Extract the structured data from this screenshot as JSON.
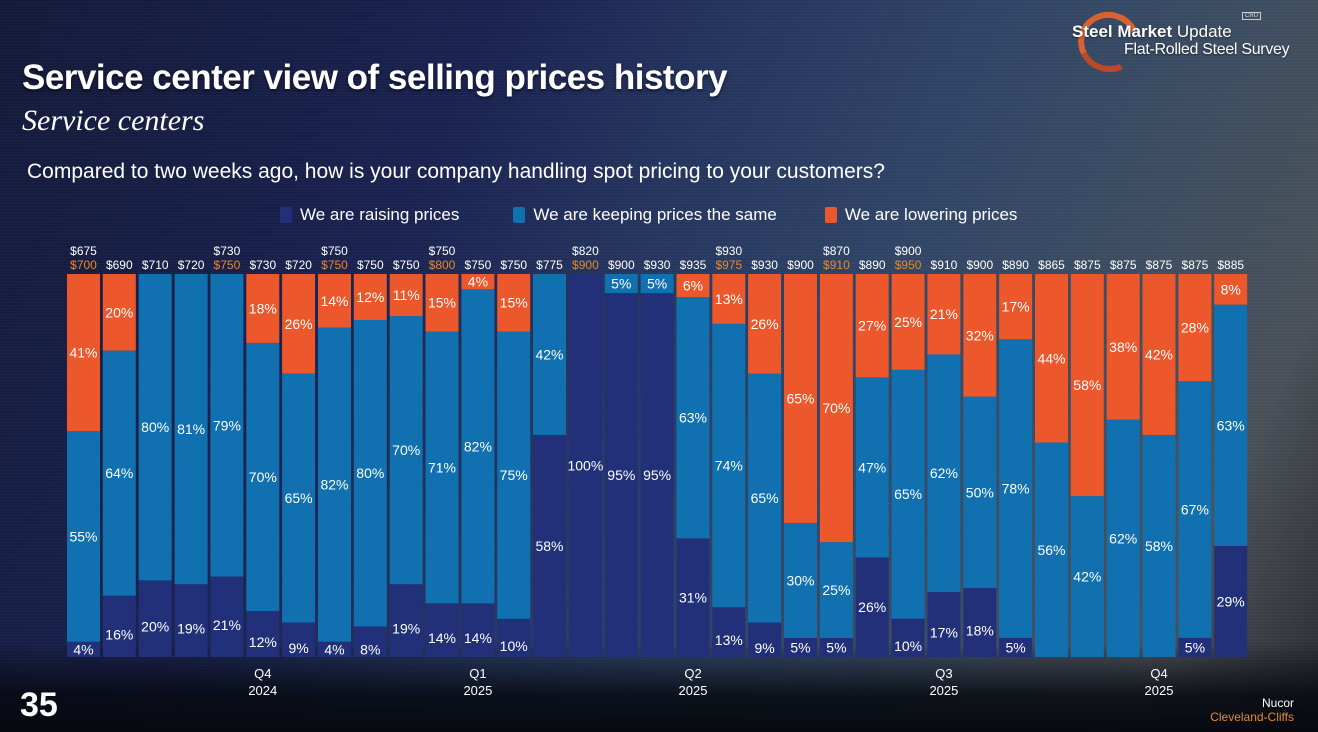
{
  "header": {
    "title": "Service center view of selling prices history",
    "subtitle": "Service centers",
    "question": "Compared to two weeks ago, how is your company handling spot pricing to your customers?"
  },
  "logo": {
    "brand_bold": "Steel Market",
    "brand_light": "Update",
    "tagline": "Flat-Rolled Steel Survey",
    "badge": "CRU"
  },
  "colors": {
    "raising": "#22307a",
    "same": "#1170b0",
    "lowering": "#ec572b",
    "price_primary": "#ffffff",
    "price_secondary": "#e8892a"
  },
  "page_number": "35",
  "source": {
    "line1": "Nucor",
    "line2": "Cleveland-Cliffs"
  },
  "chart_data": {
    "type": "bar",
    "stacked": true,
    "percent": true,
    "title": "Compared to two weeks ago, how is your company handling spot pricing to your customers?",
    "ylim": [
      0,
      100
    ],
    "legend_position": "top",
    "series": [
      {
        "name": "We are raising prices",
        "key": "raising",
        "values": [
          4,
          16,
          20,
          19,
          21,
          12,
          9,
          4,
          8,
          19,
          14,
          14,
          10,
          58,
          100,
          95,
          95,
          31,
          13,
          9,
          5,
          5,
          26,
          10,
          17,
          18,
          5,
          0,
          0,
          0,
          0,
          5,
          29
        ]
      },
      {
        "name": "We are keeping prices the same",
        "key": "same",
        "values": [
          55,
          64,
          80,
          81,
          79,
          70,
          65,
          82,
          80,
          70,
          71,
          82,
          75,
          42,
          0,
          5,
          5,
          63,
          74,
          65,
          30,
          25,
          47,
          65,
          62,
          50,
          78,
          56,
          42,
          62,
          58,
          67,
          63
        ]
      },
      {
        "name": "We are lowering prices",
        "key": "lowering",
        "values": [
          41,
          20,
          0,
          0,
          0,
          18,
          26,
          14,
          12,
          11,
          15,
          4,
          15,
          0,
          0,
          0,
          0,
          6,
          13,
          26,
          65,
          70,
          27,
          25,
          21,
          32,
          17,
          44,
          58,
          38,
          42,
          28,
          8
        ]
      }
    ],
    "price_labels_primary": [
      "$675",
      "$690",
      "$710",
      "$720",
      "$730",
      "$730",
      "$720",
      "$750",
      "$750",
      "$750",
      "$750",
      "$750",
      "$750",
      "$775",
      "$820",
      "$900",
      "$930",
      "$935",
      "$930",
      "$930",
      "$900",
      "$870",
      "$890",
      "$900",
      "$910",
      "$900",
      "$890",
      "$865",
      "$875",
      "$875",
      "$875",
      "$875",
      "$885"
    ],
    "price_labels_secondary": [
      "$700",
      "",
      "",
      "",
      "$750",
      "",
      "",
      "$750",
      "",
      "",
      "$800",
      "",
      "",
      "",
      "$900",
      "",
      "",
      "",
      "$975",
      "",
      "",
      "$910",
      "",
      "$950",
      "",
      "",
      "",
      "",
      "",
      "",
      "",
      "",
      ""
    ],
    "price_legend": {
      "white": "Nucor",
      "orange": "Cleveland-Cliffs"
    },
    "quarter_labels": [
      {
        "bar_index": 5,
        "quarter": "Q4",
        "year": "2024"
      },
      {
        "bar_index": 11,
        "quarter": "Q1",
        "year": "2025"
      },
      {
        "bar_index": 17,
        "quarter": "Q2",
        "year": "2025"
      },
      {
        "bar_index": 24,
        "quarter": "Q3",
        "year": "2025"
      },
      {
        "bar_index": 30,
        "quarter": "Q4",
        "year": "2025"
      }
    ]
  }
}
